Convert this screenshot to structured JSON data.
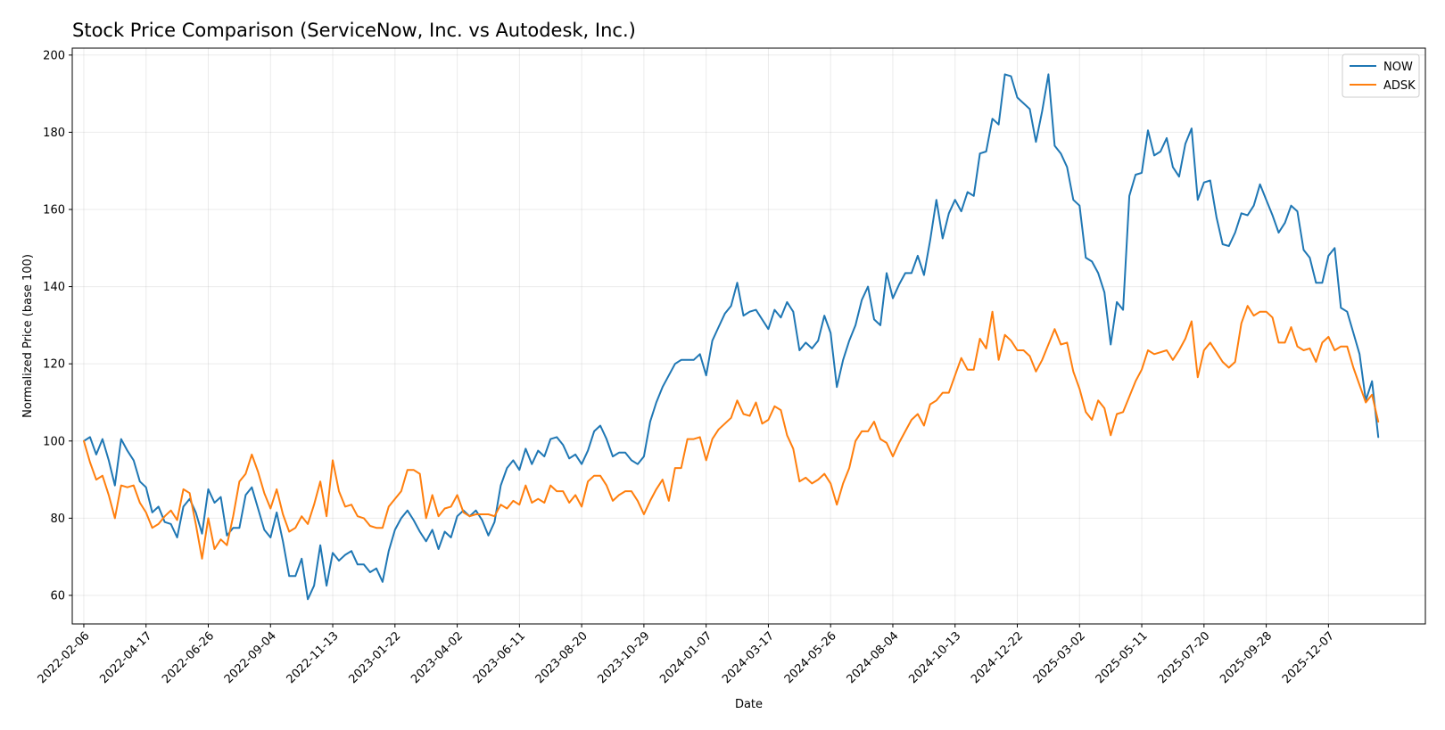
{
  "chart_data": {
    "type": "line",
    "title": "Stock Price Comparison (ServiceNow, Inc. vs Autodesk, Inc.)",
    "xlabel": "Date",
    "ylabel": "Normalized Price (base 100)",
    "xlim": [
      "2022-01-24",
      "2026-03-26"
    ],
    "ylim": [
      52.6,
      201.8
    ],
    "yticks": [
      60,
      80,
      100,
      120,
      140,
      160,
      180,
      200
    ],
    "xticks": [
      "2022-02-06",
      "2022-04-17",
      "2022-06-26",
      "2022-09-04",
      "2022-11-13",
      "2023-01-22",
      "2023-04-02",
      "2023-06-11",
      "2023-08-20",
      "2023-10-29",
      "2024-01-07",
      "2024-03-17",
      "2024-05-26",
      "2024-08-04",
      "2024-10-13",
      "2024-12-22",
      "2025-03-02",
      "2025-05-11",
      "2025-07-20",
      "2025-09-28",
      "2025-12-07"
    ],
    "grid": true,
    "legend_position": "top-right",
    "start_date": "2022-02-06",
    "step_days": 7,
    "series": [
      {
        "name": "NOW",
        "color": "#1f77b4",
        "values": [
          100.0,
          101.0,
          96.5,
          100.5,
          95.0,
          88.5,
          100.5,
          97.5,
          95.0,
          89.5,
          88.0,
          81.5,
          83.0,
          79.0,
          78.5,
          75.0,
          83.0,
          85.0,
          81.5,
          76.0,
          87.5,
          84.0,
          85.5,
          75.5,
          77.5,
          77.5,
          86.0,
          88.0,
          82.5,
          77.0,
          75.0,
          81.5,
          74.0,
          65.0,
          65.0,
          69.5,
          59.0,
          62.5,
          73.0,
          62.5,
          71.0,
          69.0,
          70.5,
          71.5,
          68.0,
          68.0,
          66.0,
          67.0,
          63.5,
          71.5,
          77.0,
          80.0,
          82.0,
          79.5,
          76.5,
          74.0,
          77.0,
          72.0,
          76.5,
          75.0,
          80.5,
          82.0,
          80.5,
          82.0,
          79.5,
          75.5,
          79.0,
          88.5,
          93.0,
          95.0,
          92.5,
          98.0,
          94.0,
          97.5,
          96.0,
          100.5,
          101.0,
          99.0,
          95.5,
          96.5,
          94.0,
          97.5,
          102.5,
          104.0,
          100.5,
          96.0,
          97.0,
          97.0,
          95.0,
          94.0,
          96.0,
          105.0,
          110.0,
          114.0,
          117.0,
          120.0,
          121.0,
          121.0,
          121.0,
          122.5,
          117.0,
          126.0,
          129.5,
          133.0,
          135.0,
          141.0,
          132.5,
          133.5,
          134.0,
          131.5,
          129.0,
          134.0,
          132.0,
          136.0,
          133.5,
          123.5,
          125.5,
          124.0,
          126.0,
          132.5,
          128.0,
          114.0,
          121.0,
          126.0,
          130.0,
          136.5,
          140.0,
          131.5,
          130.0,
          143.5,
          137.0,
          140.5,
          143.5,
          143.5,
          148.0,
          143.0,
          152.0,
          162.5,
          152.5,
          159.0,
          162.5,
          159.5,
          164.5,
          163.5,
          174.5,
          175.0,
          183.5,
          182.0,
          195.0,
          194.5,
          189.0,
          187.5,
          186.0,
          177.5,
          185.5,
          195.0,
          176.5,
          174.5,
          171.0,
          162.5,
          161.0,
          147.5,
          146.5,
          143.5,
          138.5,
          125.0,
          136.0,
          134.0,
          163.5,
          169.0,
          169.5,
          180.5,
          174.0,
          175.0,
          178.5,
          171.0,
          168.5,
          177.0,
          181.0,
          162.5,
          167.0,
          167.5,
          158.0,
          151.0,
          150.5,
          154.0,
          159.0,
          158.5,
          161.0,
          166.5,
          162.5,
          158.5,
          154.0,
          156.5,
          161.0,
          159.5,
          149.5,
          147.5,
          141.0,
          141.0,
          148.0,
          150.0,
          134.5,
          133.5,
          128.0,
          122.5,
          110.5,
          115.5,
          101.0
        ]
      },
      {
        "name": "ADSK",
        "color": "#ff7f0e",
        "values": [
          100.0,
          94.5,
          90.0,
          91.0,
          86.0,
          80.0,
          88.5,
          88.0,
          88.5,
          84.0,
          81.5,
          77.5,
          78.5,
          80.5,
          82.0,
          79.5,
          87.5,
          86.5,
          78.5,
          69.5,
          80.0,
          72.0,
          74.5,
          73.0,
          80.5,
          89.5,
          91.5,
          96.5,
          92.0,
          86.5,
          82.5,
          87.5,
          81.0,
          76.5,
          77.5,
          80.5,
          78.5,
          83.5,
          89.5,
          80.5,
          95.0,
          87.0,
          83.0,
          83.5,
          80.5,
          80.0,
          78.0,
          77.5,
          77.5,
          83.0,
          85.0,
          87.0,
          92.5,
          92.5,
          91.5,
          80.0,
          86.0,
          80.5,
          82.5,
          83.0,
          86.0,
          81.5,
          80.5,
          81.0,
          81.0,
          81.0,
          80.5,
          83.5,
          82.5,
          84.5,
          83.5,
          88.5,
          84.0,
          85.0,
          84.0,
          88.5,
          87.0,
          87.0,
          84.0,
          86.0,
          83.0,
          89.5,
          91.0,
          91.0,
          88.5,
          84.5,
          86.0,
          87.0,
          87.0,
          84.5,
          81.0,
          84.5,
          87.5,
          90.0,
          84.5,
          93.0,
          93.0,
          100.5,
          100.5,
          101.0,
          95.0,
          100.5,
          103.0,
          104.5,
          106.0,
          110.5,
          107.0,
          106.5,
          110.0,
          104.5,
          105.5,
          109.0,
          108.0,
          101.5,
          98.0,
          89.5,
          90.5,
          89.0,
          90.0,
          91.5,
          89.0,
          83.5,
          89.0,
          93.0,
          100.0,
          102.5,
          102.5,
          105.0,
          100.5,
          99.5,
          96.0,
          99.5,
          102.5,
          105.5,
          107.0,
          104.0,
          109.5,
          110.5,
          112.5,
          112.5,
          117.0,
          121.5,
          118.5,
          118.5,
          126.5,
          124.0,
          133.5,
          121.0,
          127.5,
          126.0,
          123.5,
          123.5,
          122.0,
          118.0,
          121.0,
          125.0,
          129.0,
          125.0,
          125.5,
          118.0,
          113.5,
          107.5,
          105.5,
          110.5,
          108.5,
          101.5,
          107.0,
          107.5,
          111.5,
          115.5,
          118.5,
          123.5,
          122.5,
          123.0,
          123.5,
          121.0,
          123.5,
          126.5,
          131.0,
          116.5,
          123.5,
          125.5,
          123.0,
          120.5,
          119.0,
          120.5,
          130.5,
          135.0,
          132.5,
          133.5,
          133.5,
          132.0,
          125.5,
          125.5,
          129.5,
          124.5,
          123.5,
          124.0,
          120.5,
          125.5,
          127.0,
          123.5,
          124.5,
          124.5,
          119.0,
          114.5,
          110.0,
          112.0,
          105.0
        ]
      }
    ]
  }
}
